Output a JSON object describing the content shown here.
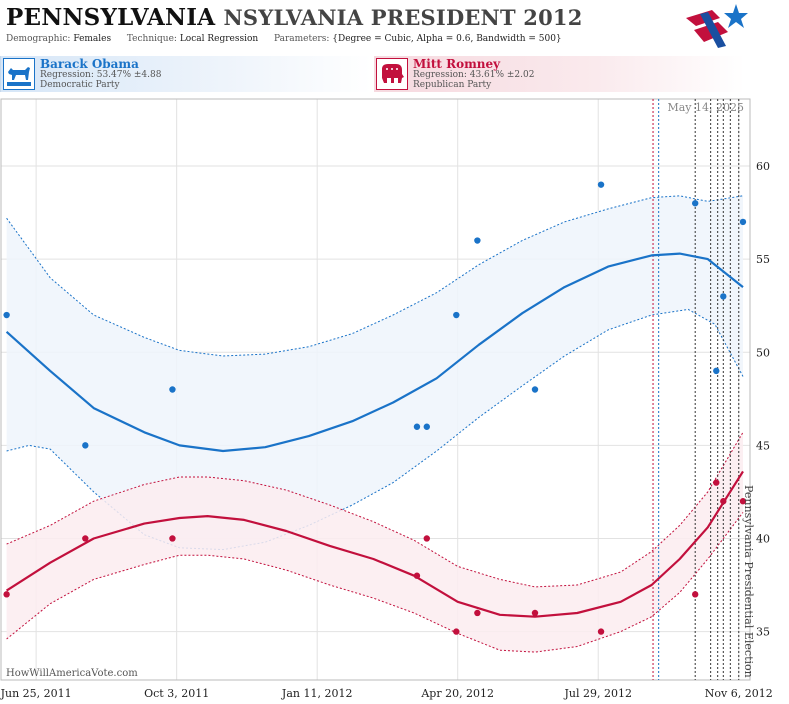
{
  "header": {
    "title_main": "PENNSYLVANIA",
    "title_ghost": "NSYLVANIA PRESIDENT 2012",
    "demographic_label": "Demographic:",
    "demographic_value": "Females",
    "technique_label": "Technique:",
    "technique_value": "Local Regression",
    "parameters_label": "Parameters:",
    "parameters_value": "{Degree = Cubic, Alpha = 0.6, Bandwidth = 500}"
  },
  "candidates": {
    "dem": {
      "name": "Barack Obama",
      "regression": "Regression: 53.47% ±4.88",
      "party": "Democratic Party",
      "color": "#1a73c8"
    },
    "rep": {
      "name": "Mitt Romney",
      "regression": "Regression: 43.61% ±2.02",
      "party": "Republican Party",
      "color": "#c2103d"
    }
  },
  "chart_data": {
    "type": "scatter",
    "title": "",
    "xlabel": "",
    "ylabel": "",
    "ylim": [
      32.4,
      63.6
    ],
    "y_ticks": [
      35,
      40,
      45,
      50,
      55,
      60
    ],
    "x_ticks": [
      "Jun 25, 2011",
      "Oct 3, 2011",
      "Jan 11, 2012",
      "Apr 20, 2012",
      "Jul 29, 2012",
      "Nov 6, 2012"
    ],
    "x_range": [
      "2011-05-31",
      "2012-11-14"
    ],
    "grid": true,
    "date_label": "May 14, 2025",
    "watermark": "HowWillAmericaVote.com",
    "election_label": "Pennsylvania Presidential Election",
    "series": [
      {
        "name": "Barack Obama",
        "color": "#1a73c8",
        "points": [
          [
            "2011-06-04",
            52
          ],
          [
            "2011-07-30",
            45
          ],
          [
            "2011-09-30",
            48
          ],
          [
            "2012-03-22",
            46
          ],
          [
            "2012-03-29",
            46
          ],
          [
            "2012-04-19",
            52
          ],
          [
            "2012-05-04",
            56
          ],
          [
            "2012-06-14",
            48
          ],
          [
            "2012-07-31",
            59
          ],
          [
            "2012-10-06",
            58
          ],
          [
            "2012-10-21",
            49
          ],
          [
            "2012-10-26",
            53
          ],
          [
            "2012-11-09",
            57
          ]
        ],
        "fit": [
          [
            "2011-06-04",
            51.1
          ],
          [
            "2011-07-05",
            49
          ],
          [
            "2011-08-05",
            47
          ],
          [
            "2011-09-10",
            45.7
          ],
          [
            "2011-10-05",
            45
          ],
          [
            "2011-11-05",
            44.7
          ],
          [
            "2011-12-05",
            44.9
          ],
          [
            "2012-01-05",
            45.5
          ],
          [
            "2012-02-05",
            46.3
          ],
          [
            "2012-03-05",
            47.3
          ],
          [
            "2012-04-05",
            48.6
          ],
          [
            "2012-05-05",
            50.4
          ],
          [
            "2012-06-05",
            52.1
          ],
          [
            "2012-07-05",
            53.5
          ],
          [
            "2012-08-05",
            54.6
          ],
          [
            "2012-09-05",
            55.2
          ],
          [
            "2012-09-25",
            55.3
          ],
          [
            "2012-10-15",
            55
          ],
          [
            "2012-11-09",
            53.5
          ]
        ],
        "upper": [
          [
            "2011-06-04",
            57.2
          ],
          [
            "2011-07-05",
            54
          ],
          [
            "2011-08-05",
            52
          ],
          [
            "2011-09-10",
            50.8
          ],
          [
            "2011-10-05",
            50.1
          ],
          [
            "2011-11-05",
            49.8
          ],
          [
            "2011-12-05",
            49.9
          ],
          [
            "2012-01-05",
            50.3
          ],
          [
            "2012-02-05",
            51
          ],
          [
            "2012-03-05",
            52
          ],
          [
            "2012-04-05",
            53.2
          ],
          [
            "2012-05-05",
            54.7
          ],
          [
            "2012-06-05",
            56
          ],
          [
            "2012-07-05",
            57
          ],
          [
            "2012-08-05",
            57.7
          ],
          [
            "2012-09-05",
            58.3
          ],
          [
            "2012-09-25",
            58.4
          ],
          [
            "2012-10-15",
            58.1
          ],
          [
            "2012-11-09",
            58.4
          ]
        ],
        "lower": [
          [
            "2011-06-04",
            44.7
          ],
          [
            "2011-06-20",
            45
          ],
          [
            "2011-07-05",
            44.8
          ],
          [
            "2011-08-05",
            42.5
          ],
          [
            "2011-09-10",
            40.2
          ],
          [
            "2011-10-05",
            39.5
          ],
          [
            "2011-11-05",
            39.4
          ],
          [
            "2011-12-05",
            39.8
          ],
          [
            "2012-01-05",
            40.7
          ],
          [
            "2012-02-05",
            41.8
          ],
          [
            "2012-03-05",
            43
          ],
          [
            "2012-04-05",
            44.7
          ],
          [
            "2012-05-05",
            46.5
          ],
          [
            "2012-06-05",
            48.2
          ],
          [
            "2012-07-05",
            49.8
          ],
          [
            "2012-08-05",
            51.2
          ],
          [
            "2012-09-05",
            52
          ],
          [
            "2012-10-01",
            52.3
          ],
          [
            "2012-10-20",
            51.5
          ],
          [
            "2012-11-09",
            48.7
          ]
        ]
      },
      {
        "name": "Mitt Romney",
        "color": "#c2103d",
        "points": [
          [
            "2011-06-04",
            37
          ],
          [
            "2011-07-30",
            40
          ],
          [
            "2011-09-30",
            40
          ],
          [
            "2012-03-22",
            38
          ],
          [
            "2012-03-29",
            40
          ],
          [
            "2012-04-19",
            35
          ],
          [
            "2012-05-04",
            36
          ],
          [
            "2012-06-14",
            36
          ],
          [
            "2012-07-31",
            35
          ],
          [
            "2012-10-06",
            37
          ],
          [
            "2012-10-21",
            43
          ],
          [
            "2012-10-26",
            42
          ],
          [
            "2012-11-09",
            42
          ]
        ],
        "fit": [
          [
            "2011-06-04",
            37.2
          ],
          [
            "2011-07-05",
            38.7
          ],
          [
            "2011-08-05",
            40
          ],
          [
            "2011-09-10",
            40.8
          ],
          [
            "2011-10-05",
            41.1
          ],
          [
            "2011-10-25",
            41.2
          ],
          [
            "2011-11-20",
            41
          ],
          [
            "2011-12-20",
            40.4
          ],
          [
            "2012-01-20",
            39.6
          ],
          [
            "2012-02-20",
            38.9
          ],
          [
            "2012-03-20",
            38
          ],
          [
            "2012-04-20",
            36.6
          ],
          [
            "2012-05-20",
            35.9
          ],
          [
            "2012-06-14",
            35.8
          ],
          [
            "2012-07-14",
            36
          ],
          [
            "2012-08-14",
            36.6
          ],
          [
            "2012-09-05",
            37.5
          ],
          [
            "2012-09-25",
            38.9
          ],
          [
            "2012-10-15",
            40.6
          ],
          [
            "2012-11-09",
            43.6
          ]
        ],
        "upper": [
          [
            "2011-06-04",
            39.7
          ],
          [
            "2011-07-05",
            40.7
          ],
          [
            "2011-08-05",
            42
          ],
          [
            "2011-09-10",
            42.9
          ],
          [
            "2011-10-05",
            43.3
          ],
          [
            "2011-10-25",
            43.3
          ],
          [
            "2011-11-20",
            43.1
          ],
          [
            "2011-12-20",
            42.6
          ],
          [
            "2012-01-20",
            41.8
          ],
          [
            "2012-02-20",
            40.9
          ],
          [
            "2012-03-20",
            39.9
          ],
          [
            "2012-04-20",
            38.5
          ],
          [
            "2012-05-20",
            37.8
          ],
          [
            "2012-06-14",
            37.4
          ],
          [
            "2012-07-14",
            37.5
          ],
          [
            "2012-08-14",
            38.2
          ],
          [
            "2012-09-05",
            39.3
          ],
          [
            "2012-09-25",
            40.7
          ],
          [
            "2012-10-15",
            42.5
          ],
          [
            "2012-11-09",
            45.7
          ]
        ],
        "lower": [
          [
            "2011-06-04",
            34.6
          ],
          [
            "2011-07-05",
            36.5
          ],
          [
            "2011-08-05",
            37.8
          ],
          [
            "2011-09-10",
            38.6
          ],
          [
            "2011-10-05",
            39.1
          ],
          [
            "2011-10-25",
            39.1
          ],
          [
            "2011-11-20",
            38.9
          ],
          [
            "2011-12-20",
            38.3
          ],
          [
            "2012-01-20",
            37.5
          ],
          [
            "2012-02-20",
            36.8
          ],
          [
            "2012-03-20",
            36
          ],
          [
            "2012-04-20",
            34.9
          ],
          [
            "2012-05-20",
            34
          ],
          [
            "2012-06-14",
            33.9
          ],
          [
            "2012-07-14",
            34.2
          ],
          [
            "2012-08-14",
            35
          ],
          [
            "2012-09-05",
            35.8
          ],
          [
            "2012-09-25",
            37.1
          ],
          [
            "2012-10-15",
            38.9
          ],
          [
            "2012-11-09",
            41.4
          ]
        ]
      }
    ],
    "vertical_markers": [
      {
        "date": "2012-09-06",
        "color": "#c2103d"
      },
      {
        "date": "2012-09-10",
        "color": "#1a73c8"
      },
      {
        "date": "2012-10-06",
        "color": "#333333"
      },
      {
        "date": "2012-10-17",
        "color": "#333333"
      },
      {
        "date": "2012-10-22",
        "color": "#333333"
      },
      {
        "date": "2012-10-26",
        "color": "#333333"
      },
      {
        "date": "2012-10-31",
        "color": "#333333"
      },
      {
        "date": "2012-11-06",
        "color": "#333333"
      }
    ]
  }
}
